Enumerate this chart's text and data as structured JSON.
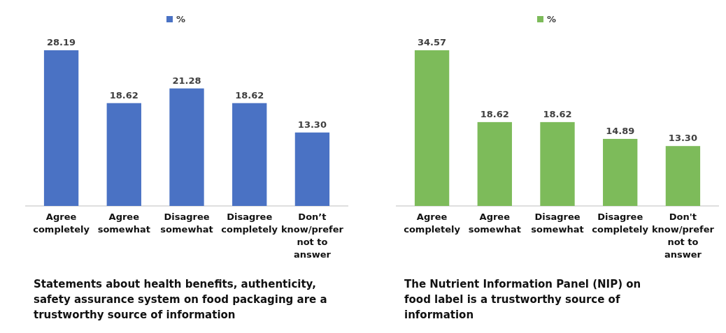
{
  "chart_data": [
    {
      "type": "bar",
      "title": "Statements about health benefits, authenticity, safety assurance system on food packaging are a trustworthy source of information",
      "categories": [
        "Agree completely",
        "Agree somewhat",
        "Disagree somewhat",
        "Disagree completely",
        "Don’t know/prefer not to answer"
      ],
      "series": [
        {
          "name": "%",
          "color": "#4a72c4",
          "values": [
            28.19,
            18.62,
            21.28,
            18.62,
            13.3
          ],
          "value_labels": [
            "28.19",
            "18.62",
            "21.28",
            "18.62",
            "13.30"
          ]
        }
      ],
      "legend": "top",
      "grid": false
    },
    {
      "type": "bar",
      "title": "The Nutrient Information Panel (NIP) on food label is a trustworthy source of information",
      "categories": [
        "Agree completely",
        "Agree somewhat",
        "Disagree somewhat",
        "Disagree completely",
        "Don't know/prefer not to answer"
      ],
      "series": [
        {
          "name": "%",
          "color": "#7dbb5a",
          "values": [
            34.57,
            18.62,
            18.62,
            14.89,
            13.3
          ],
          "value_labels": [
            "34.57",
            "18.62",
            "18.62",
            "14.89",
            "13.30"
          ]
        }
      ],
      "legend": "top",
      "grid": false
    }
  ]
}
